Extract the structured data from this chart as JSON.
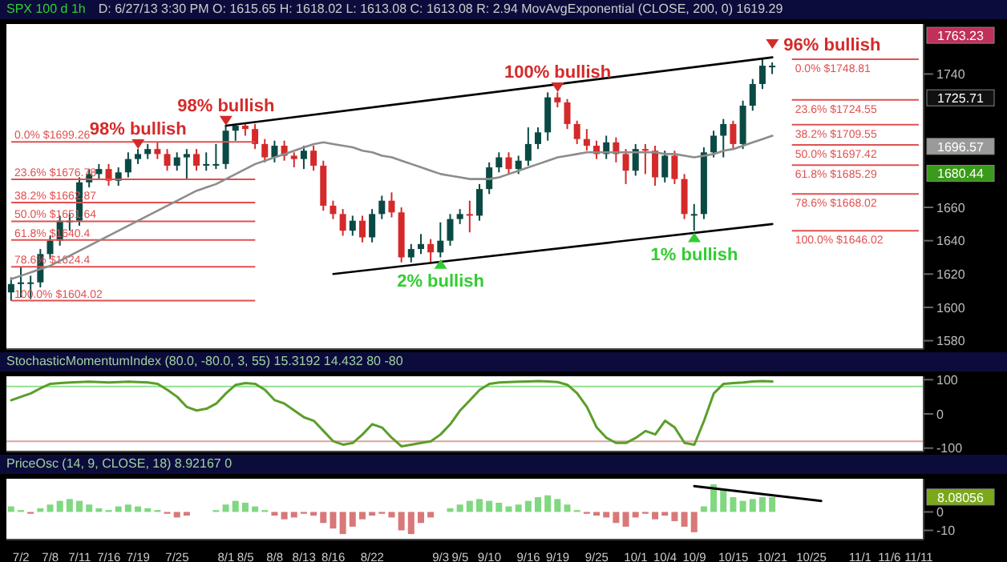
{
  "chart_data": [
    {
      "type": "candlestick",
      "title": "SPX 100 d 1h",
      "subtitle": "D: 6/27/13 3:30 PM O: 1615.65 H: 1618.02 L: 1613.08 C: 1613.08 R: 2.94 MovAvgExponential (CLOSE, 200, 0) 1619.29",
      "categories": [
        null,
        "7/2",
        null,
        null,
        "7/8",
        null,
        null,
        "7/11",
        null,
        null,
        "7/16",
        null,
        null,
        "7/19",
        null,
        null,
        null,
        "7/25",
        null,
        null,
        null,
        null,
        "8/1",
        null,
        "8/5",
        null,
        null,
        "8/8",
        null,
        null,
        "8/13",
        null,
        null,
        "8/16",
        null,
        null,
        null,
        "8/22",
        null,
        null,
        null,
        null,
        null,
        null,
        "9/3",
        null,
        "9/5",
        null,
        null,
        "9/10",
        null,
        null,
        null,
        "9/16",
        null,
        null,
        "9/19",
        null,
        null,
        null,
        "9/25",
        null,
        null,
        null,
        "10/1",
        null,
        null,
        "10/4",
        null,
        null,
        "10/9",
        null,
        null,
        null,
        "10/15",
        null,
        null,
        null,
        "10/21",
        null,
        null,
        null,
        "10/25",
        null,
        null,
        null,
        null,
        "11/1",
        null,
        null,
        "11/6",
        null,
        null,
        "11/11"
      ],
      "ohlc": [
        [
          1609,
          1618,
          1604,
          1614
        ],
        [
          1614,
          1624,
          1606,
          1615
        ],
        [
          1615,
          1619,
          1605,
          1615
        ],
        [
          1615,
          1635,
          1612,
          1632
        ],
        [
          1632,
          1643,
          1629,
          1640
        ],
        [
          1640,
          1655,
          1637,
          1652
        ],
        [
          1652,
          1656,
          1646,
          1652
        ],
        [
          1652,
          1678,
          1649,
          1675
        ],
        [
          1675,
          1683,
          1672,
          1680
        ],
        [
          1680,
          1686,
          1677,
          1683
        ],
        [
          1683,
          1686,
          1673,
          1676
        ],
        [
          1676,
          1684,
          1673,
          1681
        ],
        [
          1681,
          1693,
          1678,
          1689
        ],
        [
          1689,
          1695,
          1686,
          1692
        ],
        [
          1692,
          1698,
          1689,
          1695
        ],
        [
          1695,
          1699,
          1689,
          1692
        ],
        [
          1692,
          1695,
          1682,
          1685
        ],
        [
          1685,
          1693,
          1682,
          1690
        ],
        [
          1690,
          1695,
          1677,
          1692
        ],
        [
          1692,
          1695,
          1682,
          1685
        ],
        [
          1685,
          1693,
          1682,
          1686
        ],
        [
          1686,
          1698,
          1683,
          1686
        ],
        [
          1686,
          1709,
          1683,
          1706
        ],
        [
          1706,
          1710,
          1700,
          1709
        ],
        [
          1709,
          1711,
          1703,
          1707
        ],
        [
          1707,
          1710,
          1695,
          1698
        ],
        [
          1698,
          1701,
          1687,
          1690
        ],
        [
          1690,
          1700,
          1687,
          1697
        ],
        [
          1697,
          1700,
          1688,
          1691
        ],
        [
          1691,
          1693,
          1684,
          1689
        ],
        [
          1689,
          1697,
          1683,
          1694
        ],
        [
          1694,
          1697,
          1682,
          1685
        ],
        [
          1685,
          1688,
          1658,
          1661
        ],
        [
          1661,
          1664,
          1653,
          1656
        ],
        [
          1656,
          1659,
          1643,
          1646
        ],
        [
          1646,
          1655,
          1643,
          1652
        ],
        [
          1652,
          1655,
          1639,
          1642
        ],
        [
          1642,
          1659,
          1639,
          1656
        ],
        [
          1656,
          1667,
          1653,
          1664
        ],
        [
          1664,
          1669,
          1654,
          1657
        ],
        [
          1657,
          1660,
          1627,
          1630
        ],
        [
          1630,
          1638,
          1627,
          1635
        ],
        [
          1635,
          1644,
          1632,
          1638
        ],
        [
          1638,
          1641,
          1627,
          1633
        ],
        [
          1633,
          1651,
          1630,
          1640
        ],
        [
          1640,
          1656,
          1637,
          1653
        ],
        [
          1653,
          1659,
          1650,
          1656
        ],
        [
          1656,
          1664,
          1645,
          1655
        ],
        [
          1655,
          1674,
          1652,
          1671
        ],
        [
          1671,
          1687,
          1668,
          1684
        ],
        [
          1684,
          1693,
          1681,
          1690
        ],
        [
          1690,
          1693,
          1680,
          1683
        ],
        [
          1683,
          1691,
          1680,
          1688
        ],
        [
          1688,
          1708,
          1685,
          1698
        ],
        [
          1698,
          1708,
          1695,
          1705
        ],
        [
          1705,
          1729,
          1700,
          1726
        ],
        [
          1726,
          1729,
          1720,
          1723
        ],
        [
          1723,
          1725,
          1707,
          1710
        ],
        [
          1710,
          1712,
          1698,
          1701
        ],
        [
          1701,
          1707,
          1694,
          1697
        ],
        [
          1697,
          1700,
          1689,
          1692
        ],
        [
          1692,
          1703,
          1689,
          1699
        ],
        [
          1699,
          1702,
          1687,
          1692
        ],
        [
          1692,
          1695,
          1674,
          1682
        ],
        [
          1682,
          1698,
          1679,
          1695
        ],
        [
          1695,
          1698,
          1680,
          1694
        ],
        [
          1694,
          1697,
          1673,
          1678
        ],
        [
          1678,
          1694,
          1675,
          1691
        ],
        [
          1691,
          1694,
          1674,
          1677
        ],
        [
          1677,
          1680,
          1653,
          1656
        ],
        [
          1656,
          1662,
          1646,
          1656
        ],
        [
          1656,
          1696,
          1653,
          1693
        ],
        [
          1693,
          1706,
          1690,
          1703
        ],
        [
          1703,
          1713,
          1690,
          1710
        ],
        [
          1710,
          1712,
          1695,
          1698
        ],
        [
          1698,
          1724,
          1695,
          1721
        ],
        [
          1721,
          1737,
          1718,
          1734
        ],
        [
          1734,
          1749,
          1731,
          1745
        ],
        [
          1745,
          1747,
          1740,
          1745
        ],
        null,
        null,
        null,
        null,
        null,
        null,
        null,
        null,
        null,
        null,
        null,
        null,
        null,
        null,
        null
      ],
      "series": [
        {
          "type": "line",
          "color": "#8c8c8c",
          "values": [
            1617,
            1619,
            1621,
            1623,
            1625,
            1628,
            1631,
            1634,
            1637,
            1640,
            1643,
            1646,
            1649,
            1652,
            1655,
            1658,
            1661,
            1664,
            1667,
            1670,
            1672,
            1674,
            1677,
            1680,
            1683,
            1686,
            1688,
            1690,
            1692,
            1694,
            1696,
            1698,
            1699,
            1698,
            1697,
            1696,
            1694,
            1693,
            1691,
            1690,
            1688,
            1686,
            1684,
            1682,
            1680,
            1679,
            1678,
            1677,
            1677,
            1677,
            1678,
            1680,
            1682,
            1684,
            1686,
            1688,
            1690,
            1691,
            1692,
            1693,
            1693,
            1693,
            1693,
            1693,
            1693,
            1693,
            1693,
            1692,
            1692,
            1691,
            1690,
            1691,
            1692,
            1694,
            1695,
            1697,
            1699,
            1701,
            1703,
            null,
            null,
            null,
            null,
            null,
            null,
            null,
            null,
            null,
            null,
            null,
            null,
            null,
            null,
            null
          ]
        },
        {
          "type": "line",
          "color": "#000000",
          "values": [
            null,
            null,
            null,
            null,
            null,
            null,
            null,
            null,
            null,
            null,
            null,
            null,
            null,
            null,
            null,
            null,
            null,
            null,
            null,
            null,
            null,
            null,
            1709,
            null,
            null,
            null,
            null,
            null,
            null,
            null,
            null,
            null,
            null,
            null,
            null,
            null,
            null,
            null,
            null,
            null,
            null,
            null,
            null,
            null,
            null,
            null,
            null,
            null,
            null,
            null,
            null,
            null,
            null,
            null,
            null,
            null,
            null,
            null,
            null,
            null,
            null,
            null,
            null,
            null,
            null,
            null,
            null,
            null,
            null,
            null,
            null,
            null,
            null,
            null,
            null,
            null,
            null,
            null,
            1750,
            null,
            null,
            null,
            null,
            null,
            null,
            null,
            null,
            null,
            null,
            null,
            null,
            null,
            null,
            null
          ]
        },
        {
          "type": "line",
          "color": "#000000",
          "values": [
            null,
            null,
            null,
            null,
            null,
            null,
            null,
            null,
            null,
            null,
            null,
            null,
            null,
            null,
            null,
            null,
            null,
            null,
            null,
            null,
            null,
            null,
            null,
            null,
            null,
            null,
            null,
            null,
            null,
            null,
            null,
            null,
            null,
            1620,
            null,
            null,
            null,
            null,
            null,
            null,
            null,
            null,
            null,
            null,
            null,
            null,
            null,
            null,
            null,
            null,
            null,
            null,
            null,
            null,
            null,
            null,
            null,
            null,
            null,
            null,
            null,
            null,
            null,
            null,
            null,
            null,
            null,
            null,
            null,
            null,
            null,
            null,
            null,
            null,
            null,
            null,
            null,
            null,
            1650,
            null,
            null,
            null,
            null,
            null,
            null,
            null,
            null,
            null,
            null,
            null,
            null,
            null,
            null,
            null
          ]
        },
        {
          "type": "scatter",
          "color": "#d42a2a",
          "marker": "triangle",
          "values": [
            null,
            null,
            null,
            null,
            null,
            null,
            null,
            null,
            null,
            null,
            null,
            null,
            null,
            1698,
            null,
            null,
            null,
            null,
            null,
            null,
            null,
            null,
            1712,
            null,
            null,
            null,
            null,
            null,
            null,
            null,
            null,
            null,
            null,
            null,
            null,
            null,
            null,
            null,
            null,
            null,
            null,
            null,
            null,
            null,
            null,
            null,
            null,
            null,
            null,
            null,
            null,
            null,
            null,
            null,
            null,
            null,
            1732,
            null,
            null,
            null,
            null,
            null,
            null,
            null,
            null,
            null,
            null,
            null,
            null,
            null,
            null,
            null,
            null,
            null,
            null,
            null,
            null,
            null,
            1758,
            null,
            null,
            null,
            null,
            null,
            null,
            null,
            null,
            null,
            null,
            null,
            null,
            null,
            null,
            null
          ]
        },
        {
          "type": "scatter",
          "color": "#33cc33",
          "marker": "triangle",
          "values": [
            null,
            null,
            null,
            null,
            null,
            null,
            null,
            null,
            null,
            null,
            null,
            null,
            null,
            null,
            null,
            null,
            null,
            null,
            null,
            null,
            null,
            null,
            null,
            null,
            null,
            null,
            null,
            null,
            null,
            null,
            null,
            null,
            null,
            null,
            null,
            null,
            null,
            null,
            null,
            null,
            null,
            null,
            null,
            null,
            1626,
            null,
            null,
            null,
            null,
            null,
            null,
            null,
            null,
            null,
            null,
            null,
            null,
            null,
            null,
            null,
            null,
            null,
            null,
            null,
            null,
            null,
            null,
            null,
            null,
            null,
            1642,
            null,
            null,
            null,
            null,
            null,
            null,
            null,
            null,
            null,
            null,
            null,
            null,
            null,
            null,
            null,
            null,
            null,
            null,
            null,
            null,
            null,
            null,
            null
          ]
        }
      ],
      "ylim": [
        1575,
        1770
      ],
      "yticks": [
        1580,
        1600,
        1620,
        1640,
        1660,
        1740
      ],
      "tick_labels": "y",
      "ref_lines": [
        {
          "axis": "y",
          "value": 1699.26,
          "label": "0.0% $1699.26",
          "color": "#e05050"
        },
        {
          "axis": "y",
          "value": 1676.78,
          "label": "23.6% $1676.78",
          "color": "#e05050"
        },
        {
          "axis": "y",
          "value": 1662.87,
          "label": "38.2% $1662.87",
          "color": "#e05050"
        },
        {
          "axis": "y",
          "value": 1651.64,
          "label": "50.0% $1651.64",
          "color": "#e05050"
        },
        {
          "axis": "y",
          "value": 1640.4,
          "label": "61.8% $1640.4",
          "color": "#e05050"
        },
        {
          "axis": "y",
          "value": 1624.4,
          "label": "78.6% $1624.4",
          "color": "#e05050"
        },
        {
          "axis": "y",
          "value": 1604.02,
          "label": "100.0% $1604.02",
          "color": "#e05050"
        },
        {
          "axis": "y",
          "value": 1748.81,
          "label": "0.0% $1748.81",
          "color": "#e05050"
        },
        {
          "axis": "y",
          "value": 1724.55,
          "label": "23.6% $1724.55",
          "color": "#e05050"
        },
        {
          "axis": "y",
          "value": 1709.55,
          "label": "38.2% $1709.55",
          "color": "#e05050"
        },
        {
          "axis": "y",
          "value": 1697.42,
          "label": "50.0% $1697.42",
          "color": "#e05050"
        },
        {
          "axis": "y",
          "value": 1685.29,
          "label": "61.8% $1685.29",
          "color": "#e05050"
        },
        {
          "axis": "y",
          "value": 1668.02,
          "label": "78.6% $1668.02",
          "color": "#e05050"
        },
        {
          "axis": "y",
          "value": 1646.02,
          "label": "100.0% $1646.02",
          "color": "#e05050"
        }
      ],
      "annotations": [
        {
          "text": "98% bullish",
          "x": "7/19",
          "y": 1698
        },
        {
          "text": "98% bullish",
          "x": "8/1",
          "y": 1712
        },
        {
          "text": "100% bullish",
          "x": "9/19",
          "y": 1732
        },
        {
          "text": "96% bullish",
          "x": "10/21",
          "y": 1758
        },
        {
          "text": "2% bullish",
          "x": "9/3",
          "y": 1626
        },
        {
          "text": "1% bullish",
          "x": "10/9",
          "y": 1642
        },
        "1763.23",
        "1725.71",
        "1696.57",
        "1680.44"
      ],
      "legend": false
    },
    {
      "type": "line",
      "title": "StochasticMomentumIndex (80.0, -80.0, 3, 55) 15.3192 14.432 80 -80",
      "categories": [
        null,
        "7/2",
        null,
        null,
        "7/8",
        null,
        null,
        "7/11",
        null,
        null,
        "7/16",
        null,
        null,
        "7/19",
        null,
        null,
        null,
        "7/25",
        null,
        null,
        null,
        null,
        "8/1",
        null,
        "8/5",
        null,
        null,
        "8/8",
        null,
        null,
        "8/13",
        null,
        null,
        "8/16",
        null,
        null,
        null,
        "8/22",
        null,
        null,
        null,
        null,
        null,
        null,
        "9/3",
        null,
        "9/5",
        null,
        null,
        "9/10",
        null,
        null,
        null,
        "9/16",
        null,
        null,
        "9/19",
        null,
        null,
        null,
        "9/25",
        null,
        null,
        null,
        "10/1",
        null,
        null,
        "10/4",
        null,
        null,
        "10/9",
        null,
        null,
        null,
        "10/15",
        null,
        null,
        null,
        "10/21",
        null,
        null,
        null,
        "10/25",
        null,
        null,
        null,
        null,
        "11/1",
        null,
        null,
        "11/6",
        null,
        null,
        "11/11"
      ],
      "series": [
        {
          "color": "#5a9e2a",
          "values": [
            40,
            50,
            60,
            75,
            88,
            90,
            92,
            93,
            94,
            93,
            92,
            93,
            94,
            93,
            92,
            88,
            70,
            50,
            20,
            10,
            15,
            30,
            60,
            85,
            90,
            88,
            70,
            40,
            30,
            10,
            -10,
            -20,
            -50,
            -80,
            -90,
            -85,
            -60,
            -30,
            -40,
            -70,
            -95,
            -90,
            -85,
            -80,
            -60,
            -30,
            10,
            40,
            70,
            88,
            92,
            93,
            94,
            95,
            96,
            95,
            93,
            85,
            60,
            20,
            -40,
            -70,
            -85,
            -85,
            -70,
            -50,
            -60,
            -20,
            -40,
            -85,
            -90,
            -20,
            60,
            88,
            90,
            92,
            95,
            96,
            95,
            null,
            null,
            null,
            null,
            null,
            null,
            null,
            null,
            null,
            null,
            null,
            null,
            null,
            null,
            null
          ]
        }
      ],
      "ylim": [
        -110,
        110
      ],
      "yticks": [
        -100,
        0,
        100
      ],
      "tick_labels": "y",
      "ref_lines": [
        {
          "axis": "y",
          "value": 80,
          "color": "#90e090"
        },
        {
          "axis": "y",
          "value": -80,
          "color": "#e0a0a0"
        }
      ],
      "legend": false
    },
    {
      "type": "bar",
      "title": "PriceOsc (14, 9, CLOSE, 18) 8.92167 0",
      "categories": [
        null,
        "7/2",
        null,
        null,
        "7/8",
        null,
        null,
        "7/11",
        null,
        null,
        "7/16",
        null,
        null,
        "7/19",
        null,
        null,
        null,
        "7/25",
        null,
        null,
        null,
        null,
        "8/1",
        null,
        "8/5",
        null,
        null,
        "8/8",
        null,
        null,
        "8/13",
        null,
        null,
        "8/16",
        null,
        null,
        null,
        "8/22",
        null,
        null,
        null,
        null,
        null,
        null,
        "9/3",
        null,
        "9/5",
        null,
        null,
        "9/10",
        null,
        null,
        null,
        "9/16",
        null,
        null,
        "9/19",
        null,
        null,
        null,
        "9/25",
        null,
        null,
        null,
        "10/1",
        null,
        null,
        "10/4",
        null,
        null,
        "10/9",
        null,
        null,
        null,
        "10/15",
        null,
        null,
        null,
        "10/21",
        null,
        null,
        null,
        "10/25",
        null,
        null,
        null,
        null,
        "11/1",
        null,
        null,
        "11/6",
        null,
        null,
        "11/11"
      ],
      "series": [
        {
          "type": "bar",
          "values": [
            3,
            1,
            -1,
            2,
            4,
            6,
            7,
            6,
            4,
            2,
            1,
            3,
            4,
            3,
            2,
            1,
            -1,
            -3,
            -2,
            0,
            0,
            1,
            4,
            6,
            5,
            3,
            1,
            -2,
            -4,
            -3,
            -1,
            -2,
            -6,
            -9,
            -12,
            -8,
            -4,
            -2,
            -1,
            -3,
            -10,
            -12,
            -6,
            -3,
            0,
            2,
            4,
            6,
            7,
            6,
            5,
            3,
            4,
            6,
            8,
            9,
            7,
            4,
            1,
            -1,
            -2,
            -3,
            -6,
            -8,
            -3,
            -1,
            -4,
            -2,
            -5,
            -8,
            -11,
            3,
            15,
            12,
            8,
            6,
            7,
            8,
            8,
            null,
            null,
            null,
            null,
            null,
            null,
            null,
            null,
            null,
            null,
            null,
            null,
            null,
            null,
            null
          ],
          "colors": [
            "#80d880",
            "#80d880",
            "#d87878",
            "#80d880",
            "#80d880",
            "#80d880",
            "#80d880",
            "#80d880",
            "#80d880",
            "#80d880",
            "#80d880",
            "#80d880",
            "#80d880",
            "#80d880",
            "#80d880",
            "#80d880",
            "#d87878",
            "#d87878",
            "#d87878",
            "#80d880",
            "#80d880",
            "#80d880",
            "#80d880",
            "#80d880",
            "#80d880",
            "#80d880",
            "#80d880",
            "#d87878",
            "#d87878",
            "#d87878",
            "#d87878",
            "#d87878",
            "#d87878",
            "#d87878",
            "#d87878",
            "#d87878",
            "#d87878",
            "#d87878",
            "#d87878",
            "#d87878",
            "#d87878",
            "#d87878",
            "#d87878",
            "#d87878",
            "#80d880",
            "#80d880",
            "#80d880",
            "#80d880",
            "#80d880",
            "#80d880",
            "#80d880",
            "#80d880",
            "#80d880",
            "#80d880",
            "#80d880",
            "#80d880",
            "#80d880",
            "#80d880",
            "#80d880",
            "#d87878",
            "#d87878",
            "#d87878",
            "#d87878",
            "#d87878",
            "#d87878",
            "#d87878",
            "#d87878",
            "#d87878",
            "#d87878",
            "#d87878",
            "#d87878",
            "#80d880",
            "#80d880",
            "#80d880",
            "#80d880",
            "#80d880",
            "#80d880",
            "#80d880",
            "#80d880",
            null,
            null,
            null,
            null,
            null,
            null,
            null,
            null,
            null,
            null,
            null,
            null,
            null,
            null,
            null
          ]
        },
        {
          "type": "line",
          "color": "#000000",
          "values": [
            null,
            null,
            null,
            null,
            null,
            null,
            null,
            null,
            null,
            null,
            null,
            null,
            null,
            null,
            null,
            null,
            null,
            null,
            null,
            null,
            null,
            null,
            null,
            null,
            null,
            null,
            null,
            null,
            null,
            null,
            null,
            null,
            null,
            null,
            null,
            null,
            null,
            null,
            null,
            null,
            null,
            null,
            null,
            null,
            null,
            null,
            null,
            null,
            null,
            null,
            null,
            null,
            null,
            null,
            null,
            null,
            null,
            null,
            null,
            null,
            null,
            null,
            null,
            null,
            null,
            null,
            null,
            null,
            null,
            null,
            14,
            null,
            null,
            null,
            null,
            null,
            null,
            null,
            null,
            null,
            null,
            null,
            null,
            6,
            null,
            null,
            null,
            null,
            null,
            null,
            null,
            null,
            null,
            null
          ]
        }
      ],
      "ylim": [
        -15,
        18
      ],
      "yticks": [
        -10,
        0
      ],
      "annotations": [
        "8.08056"
      ],
      "legend": false
    }
  ]
}
